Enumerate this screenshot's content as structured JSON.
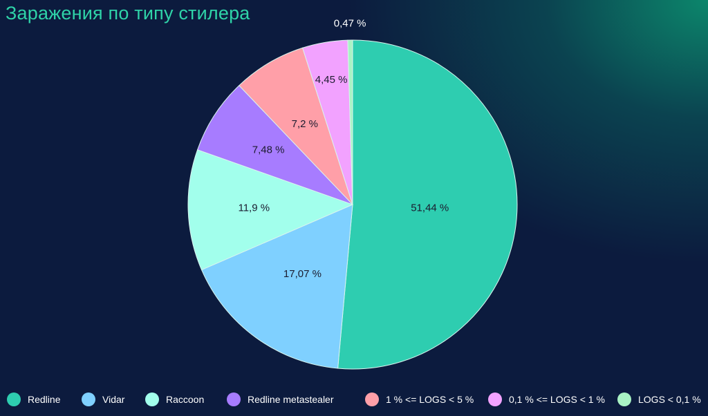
{
  "chart_data": {
    "type": "pie",
    "title": "Заражения по типу стилера",
    "legend_position": "bottom",
    "slices": [
      {
        "label": "Redline",
        "value": 51.44,
        "display": "51,44 %",
        "color": "#2ecdb0"
      },
      {
        "label": "Vidar",
        "value": 17.07,
        "display": "17,07 %",
        "color": "#7fd0ff"
      },
      {
        "label": "Raccoon",
        "value": 11.9,
        "display": "11,9 %",
        "color": "#a2ffec"
      },
      {
        "label": "Redline metastealer",
        "value": 7.48,
        "display": "7,48 %",
        "color": "#a77cff"
      },
      {
        "label": "1 % <= LOGS < 5 %",
        "value": 7.2,
        "display": "7,2 %",
        "color": "#ff9fa8"
      },
      {
        "label": "0,1 % <= LOGS < 1 %",
        "value": 4.45,
        "display": "4,45 %",
        "color": "#f2a2ff"
      },
      {
        "label": "LOGS < 0,1 %",
        "value": 0.47,
        "display": "0,47 %",
        "color": "#a9f3c4"
      }
    ]
  }
}
